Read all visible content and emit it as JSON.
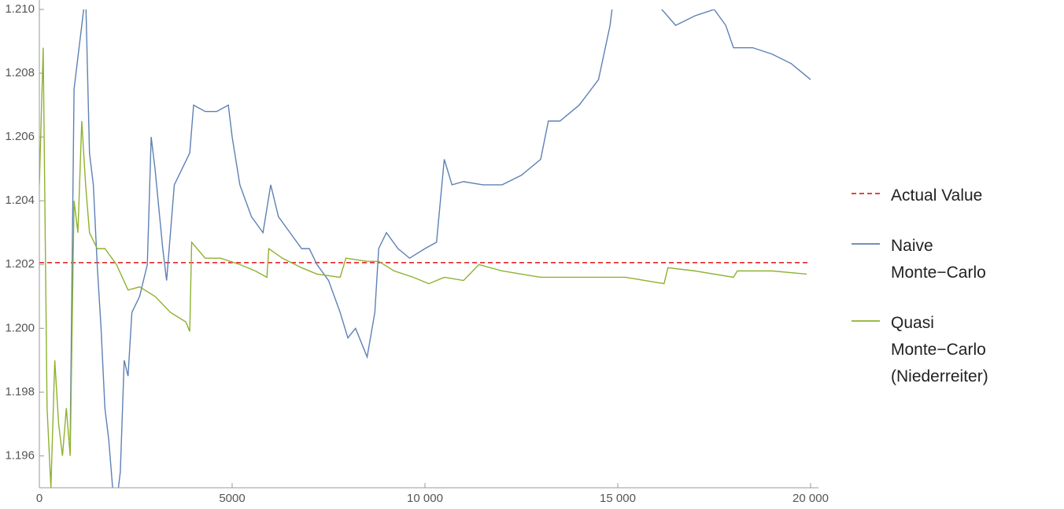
{
  "chart_data": {
    "type": "line",
    "xlim": [
      0,
      20000
    ],
    "ylim": [
      1.195,
      1.21
    ],
    "xticks": [
      0,
      5000,
      {
        "value": 10000,
        "label": "10 000"
      },
      {
        "value": 15000,
        "label": "15 000"
      },
      {
        "value": 20000,
        "label": "20 000"
      }
    ],
    "yticks": [
      1.196,
      1.198,
      {
        "value": 1.2,
        "label": "1.200"
      },
      1.202,
      1.204,
      1.206,
      1.208,
      {
        "value": 1.21,
        "label": "1.210"
      }
    ],
    "reference_line": {
      "name": "Actual Value",
      "value": 1.20206,
      "color": "#e8282b"
    },
    "series": [
      {
        "name": "Naive Monte−Carlo",
        "color": "#5e81b5",
        "x": [
          800,
          900,
          1000,
          1100,
          1200,
          1300,
          1400,
          1500,
          1600,
          1700,
          1800,
          1900,
          2000,
          2100,
          2200,
          2300,
          2400,
          2600,
          2800,
          2900,
          3000,
          3200,
          3300,
          3500,
          3700,
          3900,
          4000,
          4300,
          4600,
          4900,
          5000,
          5200,
          5500,
          5800,
          6000,
          6200,
          6500,
          6800,
          7000,
          7200,
          7500,
          7800,
          8000,
          8200,
          8500,
          8700,
          8800,
          9000,
          9300,
          9600,
          10000,
          10300,
          10500,
          10700,
          11000,
          11500,
          12000,
          12500,
          13000,
          13200,
          13500,
          14000,
          14500,
          14800,
          15000,
          15500,
          16000,
          16500,
          17000,
          17500,
          17800,
          18000,
          18500,
          19000,
          19500,
          20000
        ],
        "values": [
          1.1965,
          1.2075,
          1.2085,
          1.2095,
          1.2105,
          1.2055,
          1.2045,
          1.202,
          1.2,
          1.1975,
          1.1965,
          1.195,
          1.1945,
          1.1955,
          1.199,
          1.1985,
          1.2005,
          1.201,
          1.202,
          1.206,
          1.205,
          1.2025,
          1.2015,
          1.2045,
          1.205,
          1.2055,
          1.207,
          1.2068,
          1.2068,
          1.207,
          1.206,
          1.2045,
          1.2035,
          1.203,
          1.2045,
          1.2035,
          1.203,
          1.2025,
          1.2025,
          1.202,
          1.2015,
          1.2005,
          1.1997,
          1.2,
          1.1991,
          1.2005,
          1.2025,
          1.203,
          1.2025,
          1.2022,
          1.2025,
          1.2027,
          1.2053,
          1.2045,
          1.2046,
          1.2045,
          1.2045,
          1.2048,
          1.2053,
          1.2065,
          1.2065,
          1.207,
          1.2078,
          1.2095,
          1.2115,
          1.2115,
          1.2102,
          1.2095,
          1.2098,
          1.21,
          1.2095,
          1.2088,
          1.2088,
          1.2086,
          1.2083,
          1.2078
        ]
      },
      {
        "name": "Quasi Monte−Carlo (Niederreiter)",
        "color": "#8fb131",
        "x": [
          0,
          100,
          200,
          300,
          400,
          500,
          600,
          700,
          800,
          900,
          1000,
          1100,
          1200,
          1300,
          1500,
          1700,
          2000,
          2300,
          2600,
          3000,
          3400,
          3800,
          3900,
          3950,
          4300,
          4700,
          5200,
          5600,
          5900,
          5950,
          6300,
          6800,
          7200,
          7800,
          7950,
          8500,
          8800,
          9200,
          9700,
          10100,
          10500,
          11000,
          11400,
          12000,
          12500,
          13000,
          13800,
          14500,
          15200,
          16200,
          16300,
          17000,
          18000,
          18100,
          19000,
          19900
        ],
        "values": [
          1.2045,
          1.2088,
          1.1975,
          1.195,
          1.199,
          1.197,
          1.196,
          1.1975,
          1.196,
          1.204,
          1.203,
          1.2065,
          1.2045,
          1.203,
          1.2025,
          1.2025,
          1.202,
          1.2012,
          1.2013,
          1.201,
          1.2005,
          1.2002,
          1.1999,
          1.2027,
          1.2022,
          1.2022,
          1.202,
          1.2018,
          1.2016,
          1.2025,
          1.2022,
          1.2019,
          1.2017,
          1.2016,
          1.2022,
          1.2021,
          1.2021,
          1.2018,
          1.2016,
          1.2014,
          1.2016,
          1.2015,
          1.202,
          1.2018,
          1.2017,
          1.2016,
          1.2016,
          1.2016,
          1.2016,
          1.2014,
          1.2019,
          1.2018,
          1.2016,
          1.2018,
          1.2018,
          1.2017
        ]
      }
    ]
  }
}
